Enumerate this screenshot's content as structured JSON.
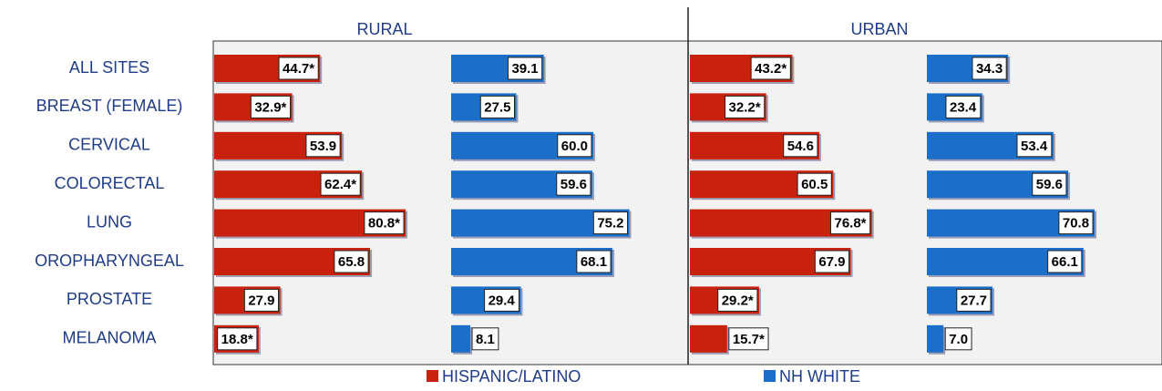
{
  "chart_data": {
    "type": "bar",
    "categories": [
      "ALL SITES",
      "BREAST (FEMALE)",
      "CERVICAL",
      "COLORECTAL",
      "LUNG",
      "OROPHARYNGEAL",
      "PROSTATE",
      "MELANOMA"
    ],
    "xlim": [
      0,
      100
    ],
    "legend": [
      {
        "name": "HISPANIC/LATINO",
        "color": "#c8220e"
      },
      {
        "name": "NH WHITE",
        "color": "#1b6fc8"
      }
    ],
    "panels": [
      {
        "title": "RURAL",
        "series": [
          {
            "values": [
              44.7,
              32.9,
              53.9,
              62.4,
              80.8,
              65.8,
              27.9,
              18.8
            ],
            "value_labels": [
              "44.7*",
              "32.9*",
              "53.9",
              "62.4*",
              "80.8*",
              "65.8",
              "27.9",
              "18.8*"
            ]
          },
          {
            "values": [
              39.1,
              27.5,
              60.0,
              59.6,
              75.2,
              68.1,
              29.4,
              8.1
            ],
            "value_labels": [
              "39.1",
              "27.5",
              "60.0",
              "59.6",
              "75.2",
              "68.1",
              "29.4",
              "8.1"
            ]
          }
        ]
      },
      {
        "title": "URBAN",
        "series": [
          {
            "values": [
              43.2,
              32.2,
              54.6,
              60.5,
              76.8,
              67.9,
              29.2,
              15.7
            ],
            "value_labels": [
              "43.2*",
              "32.2*",
              "54.6",
              "60.5",
              "76.8*",
              "67.9",
              "29.2*",
              "15.7*"
            ]
          },
          {
            "values": [
              34.3,
              23.4,
              53.4,
              59.6,
              70.8,
              66.1,
              27.7,
              7.0
            ],
            "value_labels": [
              "34.3",
              "23.4",
              "53.4",
              "59.6",
              "70.8",
              "66.1",
              "27.7",
              "7.0"
            ]
          }
        ]
      }
    ]
  }
}
